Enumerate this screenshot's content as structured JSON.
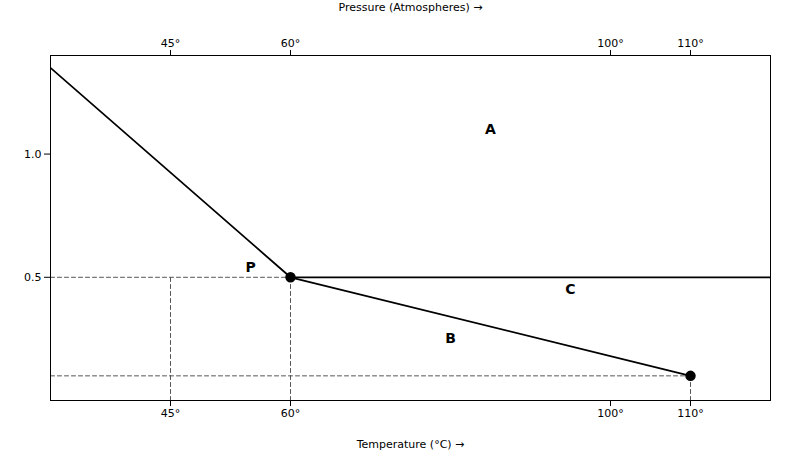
{
  "chart_data": {
    "type": "line",
    "title": "Pressure (Atmospheres)",
    "xlabel": "Temperature (°C)",
    "xlim": [
      30,
      120
    ],
    "ylim": [
      0,
      1.4
    ],
    "xticks": [
      {
        "value": 45,
        "label": "45°"
      },
      {
        "value": 60,
        "label": "60°"
      },
      {
        "value": 100,
        "label": "100°"
      },
      {
        "value": 110,
        "label": "110°"
      }
    ],
    "yticks": [
      0.5,
      {
        "value": 1.0,
        "label": "1.0"
      }
    ],
    "grid": false,
    "series": [
      {
        "type": "line",
        "line_style": "solid",
        "color": "#000000",
        "x": [
          30,
          60
        ],
        "values": [
          1.35,
          0.5
        ]
      },
      {
        "type": "line",
        "line_style": "solid",
        "color": "#000000",
        "x": [
          60,
          120
        ],
        "values": [
          0.5,
          0.5
        ]
      },
      {
        "type": "line",
        "line_style": "solid",
        "color": "#000000",
        "x": [
          60,
          110
        ],
        "values": [
          0.5,
          0.1
        ]
      },
      {
        "type": "line",
        "line_style": "dashed",
        "color": "#555555",
        "x": [
          30,
          60
        ],
        "values": [
          0.5,
          0.5
        ]
      },
      {
        "type": "line",
        "line_style": "dashed",
        "color": "#555555",
        "x": [
          60,
          60
        ],
        "values": [
          0,
          0.5
        ]
      },
      {
        "type": "line",
        "line_style": "dashed",
        "color": "#555555",
        "x": [
          30,
          110
        ],
        "values": [
          0.1,
          0.1
        ]
      },
      {
        "type": "line",
        "line_style": "dashed",
        "color": "#555555",
        "x": [
          110,
          110
        ],
        "values": [
          0,
          0.1
        ]
      },
      {
        "type": "line",
        "line_style": "dashed",
        "color": "#555555",
        "x": [
          45,
          45
        ],
        "values": [
          0,
          0.5
        ]
      },
      {
        "type": "scatter",
        "marker": "o",
        "color": "#000000",
        "x": [
          60,
          110
        ],
        "values": [
          0.5,
          0.1
        ]
      }
    ],
    "annotations": [
      {
        "text": "P",
        "x": 55,
        "y": 0.54
      },
      {
        "text": "A",
        "x": 85,
        "y": 1.1
      },
      {
        "text": "B",
        "x": 80,
        "y": 0.25
      },
      {
        "text": "C",
        "x": 95,
        "y": 0.45
      }
    ]
  }
}
